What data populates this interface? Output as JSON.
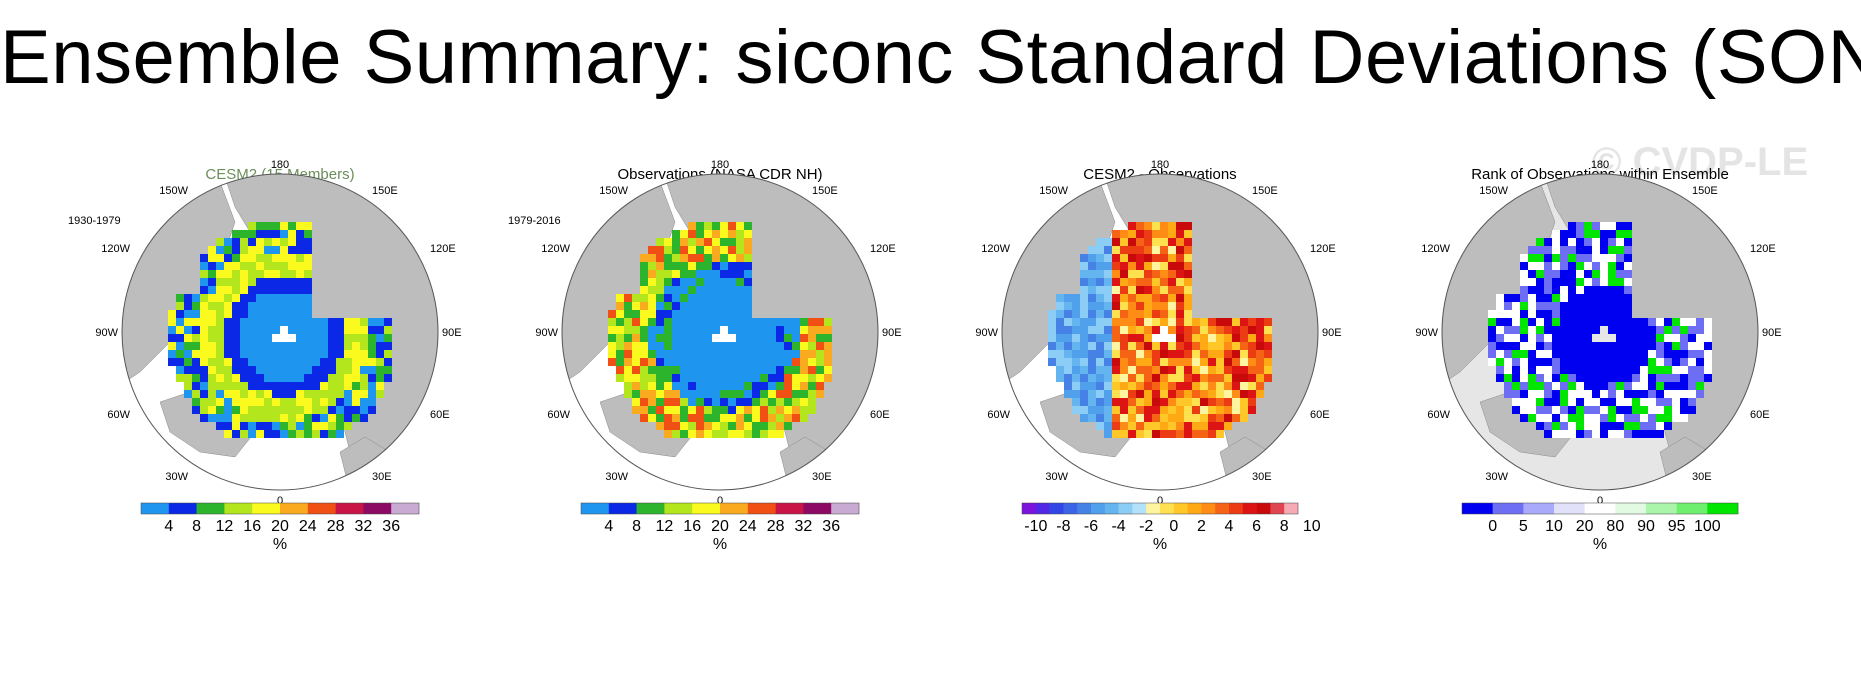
{
  "title": "Ensemble Summary: siconc Standard Deviations (SON)",
  "watermark": "© CVDP-LE",
  "lon_labels": {
    "top": "180",
    "bottom": "0",
    "upper_left": "150W",
    "upper_right": "150E",
    "left_upper": "120W",
    "right_upper": "120E",
    "left": "90W",
    "right": "90E",
    "left_lower": "60W",
    "right_lower": "60E",
    "lower_left": "30W",
    "lower_right": "30E"
  },
  "colors": {
    "land": "#bdbdbd",
    "ocean": "#ffffff",
    "title_green": "#6b8e5a",
    "watermark": "#e4e4e4"
  },
  "panels": [
    {
      "title": "CESM2 (15 Members)",
      "title_color": "#6b8e5a",
      "period": "1930-1979",
      "colorbar": {
        "colors": [
          "#1e96f0",
          "#0a28e6",
          "#2db42d",
          "#b4e61e",
          "#fafa1e",
          "#faaa1e",
          "#f05014",
          "#c81446",
          "#8c0a64",
          "#c8aad2"
        ],
        "ticks": [
          "4",
          "8",
          "12",
          "16",
          "20",
          "24",
          "28",
          "32",
          "36"
        ],
        "unit": "%"
      }
    },
    {
      "title": "Observations (NASA CDR NH)",
      "title_color": "#000000",
      "period": "1979-2016",
      "colorbar": {
        "colors": [
          "#1e96f0",
          "#0a28e6",
          "#2db42d",
          "#b4e61e",
          "#fafa1e",
          "#faaa1e",
          "#f05014",
          "#c81446",
          "#8c0a64",
          "#c8aad2"
        ],
        "ticks": [
          "4",
          "8",
          "12",
          "16",
          "20",
          "24",
          "28",
          "32",
          "36"
        ],
        "unit": "%"
      }
    },
    {
      "title": "CESM2 - Observations",
      "title_color": "#000000",
      "period": "",
      "colorbar": {
        "colors": [
          "#7c14dc",
          "#5028e6",
          "#3246e6",
          "#3c64e6",
          "#4682e6",
          "#50a0eb",
          "#64b4f0",
          "#8ccdf5",
          "#b4e1fa",
          "#fff5a0",
          "#ffe150",
          "#ffc828",
          "#ffaa14",
          "#ff8c14",
          "#f56414",
          "#eb3c14",
          "#dc1414",
          "#c80a0a",
          "#e14650",
          "#f5aab4"
        ],
        "ticks": [
          "-10",
          "-8",
          "-6",
          "-4",
          "-2",
          "0",
          "2",
          "4",
          "6",
          "8",
          "10"
        ],
        "unit": "%"
      }
    },
    {
      "title": "Rank of Observations within Ensemble",
      "title_color": "#000000",
      "period": "",
      "colorbar": {
        "colors": [
          "#0000f0",
          "#6e6ef5",
          "#aaaafa",
          "#e1e1fa",
          "#ffffff",
          "#e1fae1",
          "#aaf5aa",
          "#6ef06e",
          "#00e600"
        ],
        "ticks": [
          "0",
          "5",
          "10",
          "20",
          "80",
          "90",
          "95",
          "100"
        ],
        "unit": "%"
      }
    }
  ]
}
